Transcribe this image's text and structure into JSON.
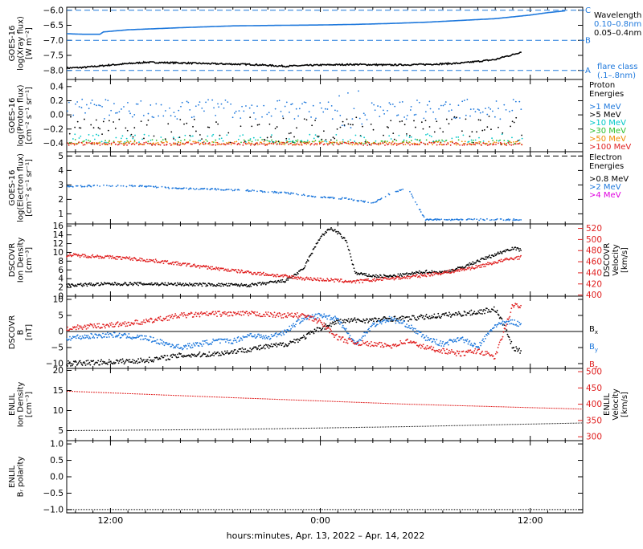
{
  "figure": {
    "xaxis_label": "hours:minutes, Apr. 13, 2022 – Apr. 14, 2022",
    "x_ticks": [
      "12:00",
      "0:00",
      "12:00"
    ],
    "x_range_hours": [
      -14.5,
      15.0
    ],
    "x_tick_hours": [
      -12,
      0,
      12
    ]
  },
  "colors": {
    "black": "#000000",
    "blue": "#1e78dc",
    "red": "#e02020",
    "cyan": "#00c8c8",
    "green": "#30c030",
    "orange": "#f08c00",
    "magenta": "#e000e0",
    "teal": "#009080"
  },
  "chart_data": [
    {
      "id": "xray",
      "type": "line",
      "ylabel": [
        "GOES-16",
        "log(Xray flux)",
        "[W m⁻²]"
      ],
      "ylim": [
        -8.3,
        -5.9
      ],
      "yticks": [
        -8.0,
        -7.5,
        -7.0,
        -6.5,
        -6.0
      ],
      "ytick_labels": [
        "−8.0",
        "−7.5",
        "−7.0",
        "−6.5",
        "−6.0"
      ],
      "flare_levels": [
        {
          "value": -6.0,
          "label": "C"
        },
        {
          "value": -7.0,
          "label": "B"
        },
        {
          "value": -8.0,
          "label": "A"
        }
      ],
      "legend_title": "Wavelength",
      "legend_extra": [
        "flare class",
        "(.1–.8nm)"
      ],
      "series": [
        {
          "name": "0.10–0.8nm",
          "color": "blue",
          "x": [
            -14.5,
            -13.5,
            -12.6,
            -12.4,
            -11,
            -8,
            -5,
            -2,
            0,
            2,
            4,
            6,
            8,
            10,
            11,
            12,
            13,
            14
          ],
          "y": [
            -6.78,
            -6.8,
            -6.8,
            -6.72,
            -6.65,
            -6.58,
            -6.52,
            -6.5,
            -6.49,
            -6.47,
            -6.44,
            -6.4,
            -6.34,
            -6.28,
            -6.22,
            -6.16,
            -6.08,
            -6.02
          ]
        },
        {
          "name": "0.05–0.4nm",
          "color": "black",
          "x": [
            -14.5,
            -13.5,
            -12,
            -10,
            -8,
            -6,
            -4,
            -2,
            0,
            2,
            4,
            6,
            8,
            9,
            10,
            10.5,
            11,
            11.5
          ],
          "y": [
            -7.92,
            -7.9,
            -7.82,
            -7.73,
            -7.75,
            -7.78,
            -7.8,
            -7.86,
            -7.82,
            -7.8,
            -7.82,
            -7.8,
            -7.76,
            -7.7,
            -7.64,
            -7.55,
            -7.48,
            -7.38
          ]
        }
      ]
    },
    {
      "id": "proton",
      "type": "scatter",
      "ylabel": [
        "GOES-16",
        "log(Proton flux)",
        "[cm⁻² s⁻¹ sr⁻¹]"
      ],
      "ylim": [
        -0.52,
        0.5
      ],
      "yticks": [
        -0.4,
        -0.2,
        0.0,
        0.2,
        0.4
      ],
      "ytick_labels": [
        "−0.4",
        "−0.2",
        "0.0",
        "0.2",
        "0.4"
      ],
      "legend_title": [
        "Proton",
        "Energies"
      ],
      "series": [
        {
          "name": ">1 MeV",
          "color": "blue",
          "x_end": 11.5,
          "base": 0.08,
          "spread": 0.14,
          "density": 0.9
        },
        {
          "name": ">5 MeV",
          "color": "black",
          "x_end": 11.5,
          "base": -0.22,
          "spread": 0.2,
          "density": 0.7
        },
        {
          "name": ">10 MeV",
          "color": "cyan",
          "x_end": 11.5,
          "base": -0.33,
          "spread": 0.06,
          "density": 0.5
        },
        {
          "name": ">30 MeV",
          "color": "green",
          "x_end": 11.5,
          "base": -0.38,
          "spread": 0.03,
          "density": 0.6
        },
        {
          "name": ">50 MeV",
          "color": "orange",
          "x_end": 11.5,
          "base": -0.4,
          "spread": 0.025,
          "density": 0.9
        },
        {
          "name": ">100 MeV",
          "color": "red",
          "x_end": 11.5,
          "base": -0.41,
          "spread": 0.02,
          "density": 1.0
        }
      ]
    },
    {
      "id": "electron",
      "type": "scatter",
      "ylabel": [
        "GOES-16",
        "log(Electron flux)",
        "[cm⁻² s⁻¹ sr⁻¹]"
      ],
      "ylim": [
        0.3,
        5.3
      ],
      "yticks": [
        1,
        2,
        3,
        4,
        5
      ],
      "ytick_labels": [
        "1",
        "2",
        "3",
        "4",
        "5"
      ],
      "reference_line": 5,
      "legend_title": [
        "Electron",
        "Energies"
      ],
      "series": [
        {
          "name": ">0.8 MeV",
          "color": "black",
          "x": [],
          "y": []
        },
        {
          "name": ">2 MeV",
          "color": "blue",
          "x": [
            -14.5,
            -12,
            -10,
            -8,
            -6,
            -4,
            -2,
            0,
            1.5,
            3,
            4,
            5,
            6,
            7,
            8,
            9,
            10,
            11,
            11.5
          ],
          "y": [
            2.9,
            2.95,
            2.9,
            2.75,
            2.7,
            2.6,
            2.45,
            2.15,
            2.05,
            1.75,
            2.4,
            2.8,
            0.6,
            0.6,
            0.6,
            0.6,
            0.6,
            0.6,
            0.6
          ]
        },
        {
          "name": ">4 MeV",
          "color": "magenta",
          "x": [],
          "y": []
        }
      ]
    },
    {
      "id": "dscovr-plasma",
      "type": "scatter",
      "ylabel": [
        "DSCOVR",
        "Ion Density",
        "[cm⁻³]"
      ],
      "ylim": [
        0,
        16.5
      ],
      "yticks": [
        0,
        2,
        4,
        6,
        8,
        10,
        12,
        14,
        16
      ],
      "ytick_labels": [
        "0",
        "2",
        "4",
        "6",
        "8",
        "10",
        "12",
        "14",
        "16"
      ],
      "ylabel_right": [
        "DSCOVR",
        "Velocity",
        "[km/s]"
      ],
      "ylim_right": [
        398,
        528
      ],
      "yticks_right": [
        400,
        420,
        440,
        460,
        480,
        500,
        520
      ],
      "ytick_labels_right": [
        "400",
        "420",
        "440",
        "460",
        "480",
        "500",
        "520"
      ],
      "series": [
        {
          "name": "Density",
          "color": "black",
          "axis": "left",
          "x": [
            -14.5,
            -12,
            -10,
            -8,
            -6,
            -4,
            -2,
            -1,
            0,
            0.6,
            1,
            1.5,
            2,
            3,
            4,
            5,
            6,
            7,
            8,
            9,
            10,
            11,
            11.5
          ],
          "y": [
            2.5,
            2.8,
            2.8,
            2.7,
            2.6,
            2.5,
            3.5,
            6,
            13.5,
            15.5,
            14.5,
            12.5,
            5.2,
            4.6,
            4.5,
            5.0,
            5.6,
            5.4,
            6.4,
            8.0,
            9.5,
            11.0,
            10.5
          ]
        },
        {
          "name": "Velocity",
          "color": "red",
          "axis": "right",
          "x": [
            -14.5,
            -13,
            -11,
            -9,
            -7,
            -5,
            -3,
            -1,
            0,
            1,
            2,
            3,
            4,
            5,
            6,
            7,
            8,
            9,
            10,
            11,
            11.5
          ],
          "y": [
            472,
            470,
            466,
            460,
            452,
            444,
            437,
            430,
            428,
            426,
            424,
            427,
            430,
            432,
            436,
            440,
            445,
            451,
            459,
            466,
            468
          ]
        }
      ]
    },
    {
      "id": "dscovr-mag",
      "type": "scatter",
      "ylabel": [
        "DSCOVR",
        "B",
        "[nT]"
      ],
      "ylim": [
        -11.5,
        11.0
      ],
      "yticks": [
        -10,
        -5,
        0,
        5,
        10
      ],
      "ytick_labels": [
        "−10",
        "−5",
        "0",
        "5",
        "10"
      ],
      "zero_line": true,
      "series": [
        {
          "name": "Bx",
          "color": "black",
          "x": [
            -14.5,
            -12,
            -10,
            -8,
            -6,
            -4,
            -2,
            -1,
            0,
            1,
            2,
            3,
            4,
            5,
            6,
            7,
            8,
            9,
            10,
            10.5,
            11,
            11.5
          ],
          "y": [
            -10,
            -9.5,
            -9,
            -7.5,
            -7,
            -5.5,
            -4,
            -2,
            1,
            3,
            3.5,
            3.5,
            4,
            4,
            4.5,
            5,
            5.5,
            6,
            7,
            2,
            -5,
            -6.5
          ]
        },
        {
          "name": "By",
          "color": "blue",
          "x": [
            -14.5,
            -12,
            -10,
            -8,
            -6,
            -5,
            -4,
            -3,
            -2,
            -1,
            0,
            1,
            2,
            3,
            4,
            5,
            6,
            7,
            8,
            9,
            10,
            11,
            11.5
          ],
          "y": [
            -2,
            -1,
            -2,
            -5,
            -3,
            -3,
            -1,
            -2,
            0,
            4,
            5,
            4,
            -4,
            2,
            4,
            2,
            -2,
            -4,
            -2,
            -5,
            2,
            3,
            2
          ]
        },
        {
          "name": "Bz",
          "color": "red",
          "x": [
            -14.5,
            -12,
            -10,
            -8,
            -6,
            -4,
            -2,
            -1,
            0,
            1,
            2,
            3,
            4,
            5,
            6,
            7,
            8,
            9,
            10,
            11,
            11.5
          ],
          "y": [
            1,
            2,
            3,
            5,
            5.5,
            5.5,
            5,
            5,
            3,
            -2,
            -3.5,
            -4,
            -4.5,
            -3,
            -5,
            -6,
            -7,
            -6,
            -8,
            8,
            8
          ]
        }
      ]
    },
    {
      "id": "enlil-plasma",
      "type": "line",
      "ylabel": [
        "ENLIL",
        "Ion Density",
        "[cm⁻³]"
      ],
      "ylim": [
        2.5,
        20.5
      ],
      "yticks": [
        5,
        10,
        15,
        20
      ],
      "ytick_labels": [
        "5",
        "10",
        "15",
        "20"
      ],
      "ylabel_right": [
        "ENLIL",
        "Velocity",
        "[km/s]"
      ],
      "ylim_right": [
        288,
        510
      ],
      "yticks_right": [
        300,
        350,
        400,
        450,
        500
      ],
      "ytick_labels_right": [
        "300",
        "350",
        "400",
        "450",
        "500"
      ],
      "series": [
        {
          "name": "Density",
          "color": "black",
          "axis": "left",
          "x": [
            -14.5,
            -5,
            5,
            15
          ],
          "y": [
            5.0,
            5.3,
            6.0,
            6.9
          ]
        },
        {
          "name": "Velocity",
          "color": "red",
          "axis": "right",
          "x": [
            -14.5,
            -5,
            5,
            15
          ],
          "y": [
            440,
            420,
            400,
            385
          ]
        }
      ]
    },
    {
      "id": "enlil-br",
      "type": "line",
      "ylabel": [
        "ENLIL",
        "Bᵣ polarity"
      ],
      "ylim": [
        -1.1,
        1.1
      ],
      "yticks": [
        -1.0,
        -0.5,
        0.0,
        0.5,
        1.0
      ],
      "ytick_labels": [
        "−1.0",
        "−0.5",
        "0.0",
        "0.5",
        "1.0"
      ],
      "series": [
        {
          "name": "Br polarity",
          "color": "black",
          "x": [
            -14.5,
            15
          ],
          "y": [
            -1,
            -1
          ]
        }
      ]
    }
  ]
}
